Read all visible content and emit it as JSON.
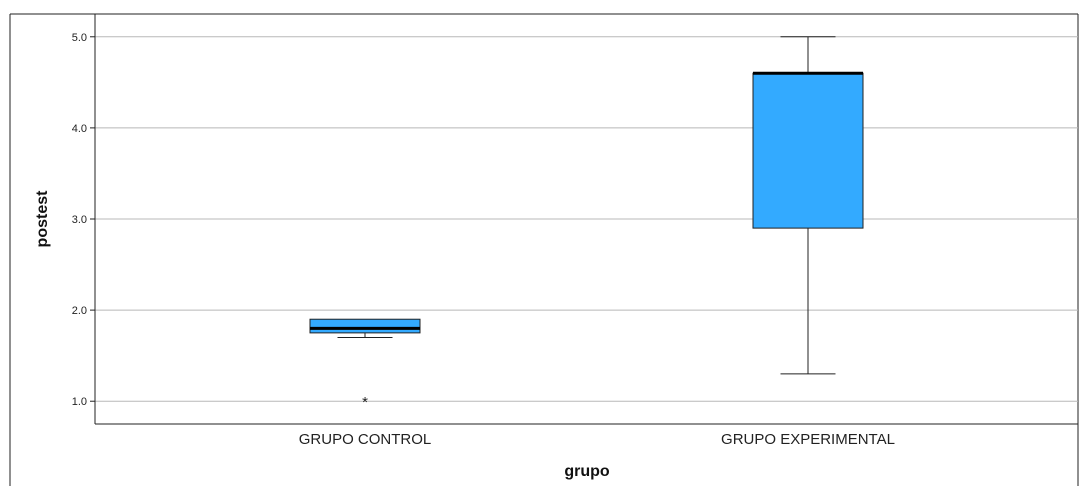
{
  "chart_data": {
    "type": "boxplot",
    "title": "",
    "xlabel": "grupo",
    "ylabel": "postest",
    "ylim": [
      0.75,
      5.25
    ],
    "yticks": [
      1.0,
      2.0,
      3.0,
      4.0,
      5.0
    ],
    "ytick_labels": [
      "1.0",
      "2.0",
      "3.0",
      "4.0",
      "5.0"
    ],
    "grid": "horizontal",
    "box_color": "#33aaff",
    "categories": [
      "GRUPO CONTROL",
      "GRUPO EXPERIMENTAL"
    ],
    "boxes": [
      {
        "category": "GRUPO CONTROL",
        "whisker_low": 1.7,
        "q1": 1.75,
        "median": 1.8,
        "q3": 1.9,
        "whisker_high": 1.9,
        "outliers": [],
        "extremes": [
          1.0
        ]
      },
      {
        "category": "GRUPO EXPERIMENTAL",
        "whisker_low": 1.3,
        "q1": 2.9,
        "median": 4.6,
        "q3": 4.6,
        "whisker_high": 5.0,
        "outliers": [],
        "extremes": []
      }
    ]
  }
}
